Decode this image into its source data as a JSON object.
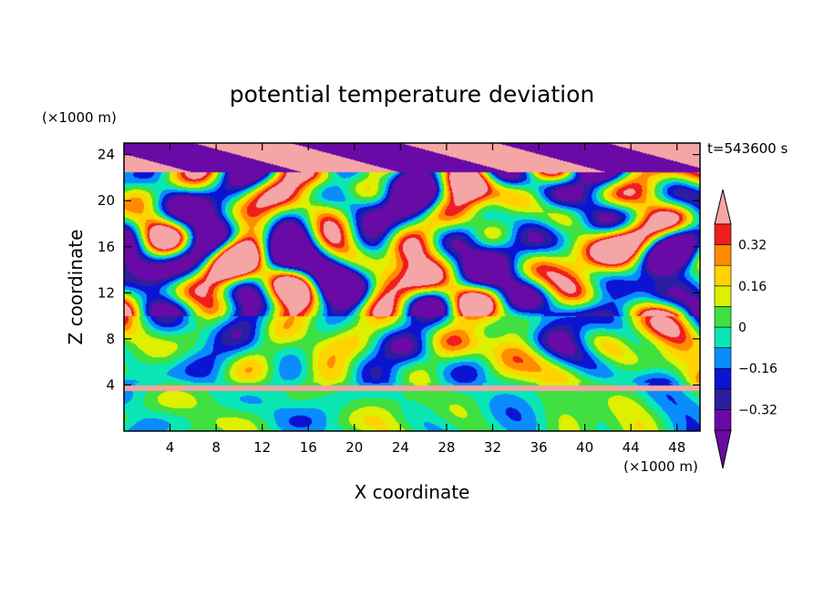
{
  "chart_data": {
    "type": "heatmap",
    "title": "potential temperature deviation",
    "xlabel": "X coordinate",
    "ylabel": "Z coordinate",
    "x_unit": "(×1000 m)",
    "y_unit": "(×1000 m)",
    "time_label": "t=543600 s",
    "xlim": [
      0,
      50
    ],
    "ylim": [
      0,
      25
    ],
    "x_ticks": [
      4,
      8,
      12,
      16,
      20,
      24,
      28,
      32,
      36,
      40,
      44,
      48
    ],
    "y_ticks": [
      4,
      8,
      12,
      16,
      20,
      24
    ],
    "x_tick_labels": [
      "4",
      "8",
      "12",
      "16",
      "20",
      "24",
      "28",
      "32",
      "36",
      "40",
      "44",
      "48"
    ],
    "y_tick_labels": [
      "4",
      "8",
      "12",
      "16",
      "20",
      "24"
    ],
    "colorbar": {
      "levels": [
        -0.4,
        -0.32,
        -0.24,
        -0.16,
        -0.08,
        0,
        0.08,
        0.16,
        0.24,
        0.32,
        0.4
      ],
      "labels": [
        "0.32",
        "0.16",
        "0",
        "−0.16",
        "−0.32"
      ],
      "label_values": [
        0.32,
        0.16,
        0,
        -0.16,
        -0.32
      ],
      "colors": [
        "#6a0aa6",
        "#2c1ea0",
        "#0a14d2",
        "#0a8cff",
        "#0ae6b4",
        "#40e040",
        "#dcf000",
        "#ffd200",
        "#ff8c00",
        "#f01e1e"
      ],
      "under_color": "#6a0aa6",
      "over_color": "#f5a5a5",
      "extend": "both"
    },
    "grid": false
  }
}
